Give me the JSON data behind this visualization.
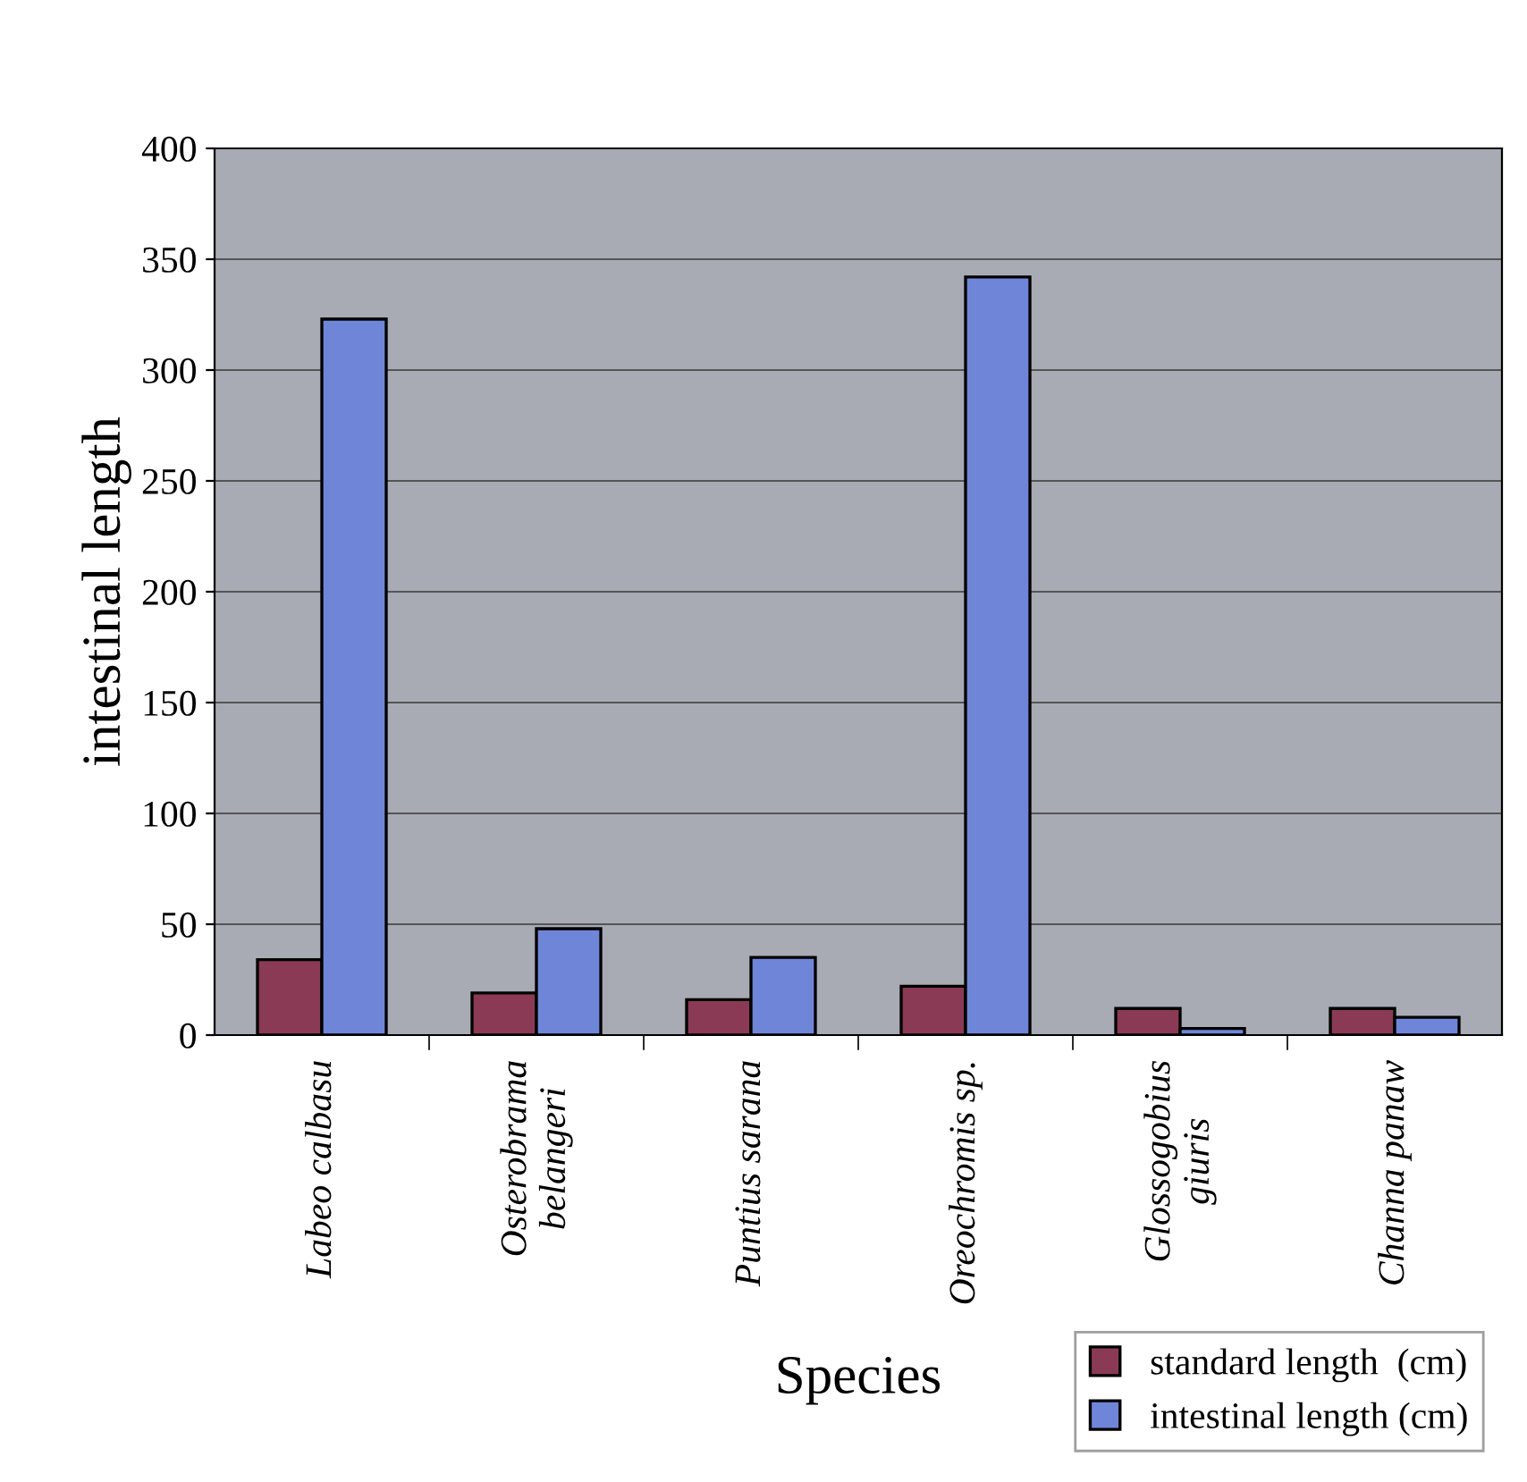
{
  "chart_data": {
    "type": "bar",
    "xlabel": "Species",
    "ylabel": "intestinal length",
    "categories": [
      "Labeo calbasu",
      "Osterobrama\nbelangeri",
      "Puntius sarana",
      "Oreochromis sp.",
      "Glossogobius\ngiuris",
      "Channa panaw"
    ],
    "series": [
      {
        "name": "standard length  (cm)",
        "color": "#8b3a55",
        "values": [
          34,
          19,
          16,
          22,
          12,
          12
        ]
      },
      {
        "name": "intestinal length (cm)",
        "color": "#6f86d8",
        "values": [
          323,
          48,
          35,
          342,
          3,
          8
        ]
      }
    ],
    "ylim": [
      0,
      400
    ],
    "yticks": [
      0,
      50,
      100,
      150,
      200,
      250,
      300,
      350,
      400
    ],
    "grid": "y",
    "legend": "bottom right"
  }
}
